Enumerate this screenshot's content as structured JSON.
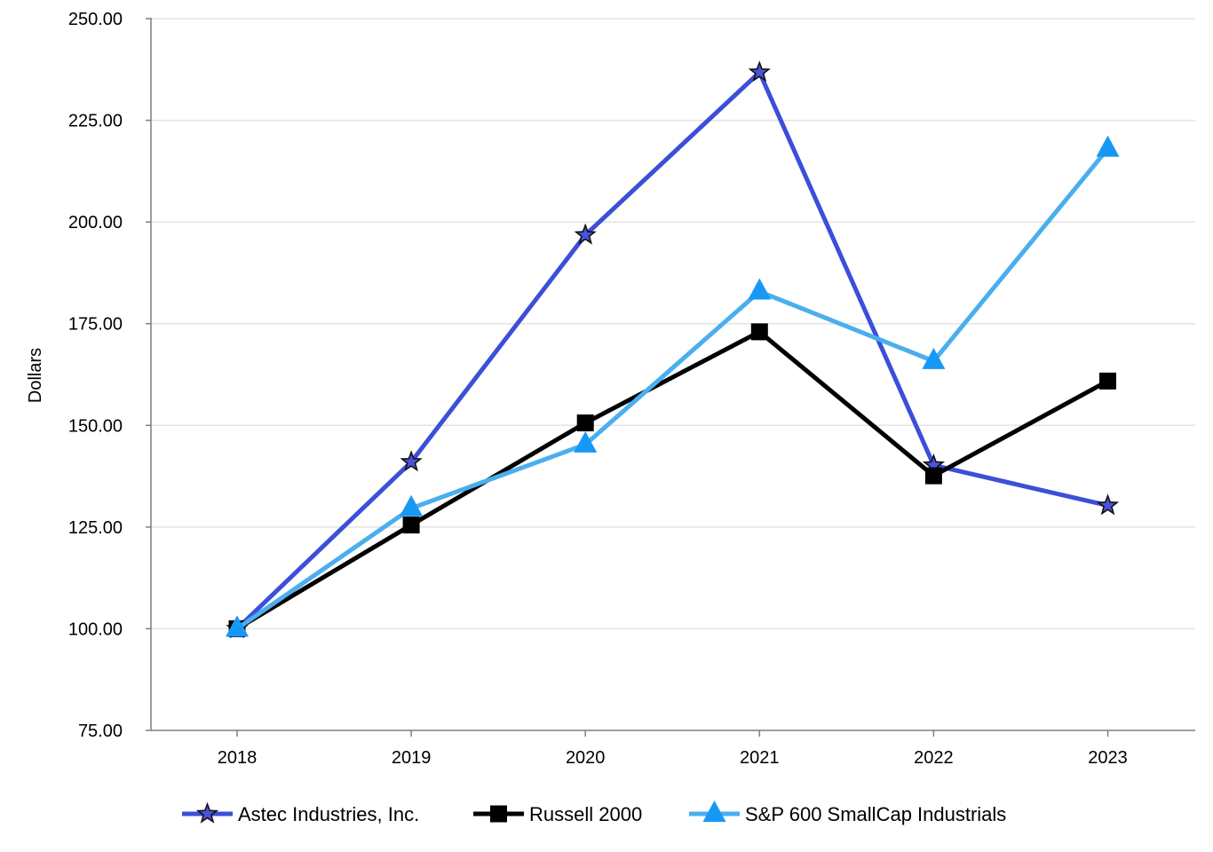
{
  "chart_data": {
    "type": "line",
    "title": "",
    "xlabel": "",
    "ylabel": "Dollars",
    "categories": [
      "2018",
      "2019",
      "2020",
      "2021",
      "2022",
      "2023"
    ],
    "ylim": [
      75,
      250
    ],
    "yticks": [
      "75.00",
      "100.00",
      "125.00",
      "150.00",
      "175.00",
      "200.00",
      "225.00",
      "250.00"
    ],
    "ytick_values": [
      75,
      100,
      125,
      150,
      175,
      200,
      225,
      250
    ],
    "grid": true,
    "legend_position": "bottom",
    "series": [
      {
        "name": "Astec Industries, Inc.",
        "marker": "star",
        "color": "#3b4fd8",
        "marker_color": "#4c52d9",
        "values": [
          100,
          141,
          196.8,
          236.8,
          140.2,
          130.3
        ]
      },
      {
        "name": "Russell 2000",
        "marker": "square",
        "color": "#000000",
        "marker_color": "#000000",
        "values": [
          100,
          125.5,
          150.6,
          173,
          137.6,
          160.9
        ]
      },
      {
        "name": "S&P 600 SmallCap Industrials",
        "marker": "triangle",
        "color": "#4aaeef",
        "marker_color": "#1898f5",
        "values": [
          100,
          129.6,
          145.3,
          182.9,
          165.8,
          218
        ]
      }
    ]
  }
}
